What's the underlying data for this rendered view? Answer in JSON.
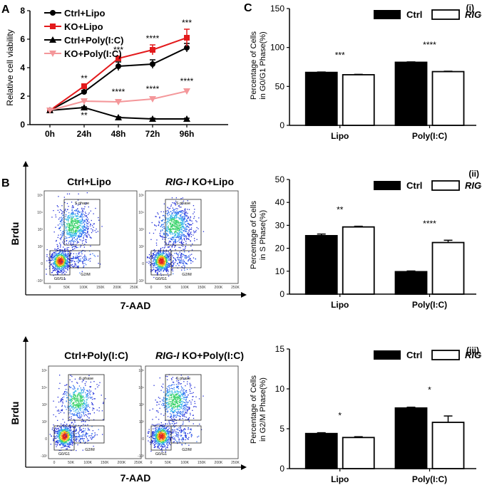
{
  "panel_labels": {
    "A": "A",
    "B": "B",
    "C": "C"
  },
  "colors": {
    "ctrl_lipo": "#000000",
    "ko_lipo": "#e31a1c",
    "ctrl_poly": "#000000",
    "ko_poly": "#f4979a",
    "ctrl_bar": "#000000",
    "ko_bar": "#ffffff"
  },
  "chart_data": [
    {
      "id": "A",
      "type": "line",
      "title": "",
      "xlabel": "",
      "ylabel": "Relative cell viability",
      "categories": [
        "0h",
        "24h",
        "48h",
        "72h",
        "96h"
      ],
      "ylim": [
        0,
        8
      ],
      "yticks": [
        "0",
        "2",
        "4",
        "6",
        "8"
      ],
      "series": [
        {
          "name": "Ctrl+Lipo",
          "values": [
            1.0,
            2.3,
            4.1,
            4.25,
            5.4
          ],
          "errors": [
            0.05,
            0.1,
            0.3,
            0.3,
            0.3
          ],
          "marker": "circle",
          "color": "#000000"
        },
        {
          "name": "KO+Lipo",
          "values": [
            1.0,
            2.7,
            4.65,
            5.25,
            6.1
          ],
          "errors": [
            0.05,
            0.1,
            0.15,
            0.35,
            0.6
          ],
          "marker": "square",
          "color": "#e31a1c"
        },
        {
          "name": "Ctrl+Poly(I:C)",
          "values": [
            1.0,
            1.2,
            0.5,
            0.4,
            0.4
          ],
          "errors": [
            0.05,
            0.05,
            0.05,
            0.05,
            0.05
          ],
          "marker": "triangle",
          "color": "#000000"
        },
        {
          "name": "KO+Poly(I:C)",
          "values": [
            1.0,
            1.65,
            1.6,
            1.8,
            2.35
          ],
          "errors": [
            0.05,
            0.1,
            0.1,
            0.15,
            0.15
          ],
          "marker": "triangle-down",
          "color": "#f4979a"
        }
      ],
      "annotations_upper": [
        "",
        "**",
        "***",
        "****",
        "***"
      ],
      "annotations_middle": [
        "",
        "",
        "****",
        "****",
        "****"
      ],
      "annotations_lower": [
        "",
        "**",
        "",
        "",
        ""
      ]
    },
    {
      "id": "C-i",
      "type": "bar",
      "panel_tag": "(i)",
      "ylabel_line1": "Percentage of Cells",
      "ylabel_line2": "in G0/G1 Phase(%)",
      "categories": [
        "Lipo",
        "Poly(I:C)"
      ],
      "ylim": [
        0,
        150
      ],
      "yticks": [
        "0",
        "50",
        "100",
        "150"
      ],
      "series": [
        {
          "name": "Ctrl",
          "values": [
            68,
            81
          ],
          "errors": [
            0.5,
            0.5
          ]
        },
        {
          "name": "RIG-I KO",
          "values": [
            65,
            69
          ],
          "errors": [
            0.5,
            0.5
          ]
        }
      ],
      "significance": [
        "***",
        "****"
      ]
    },
    {
      "id": "C-ii",
      "type": "bar",
      "panel_tag": "(ii)",
      "ylabel_line1": "Percentage of Cells",
      "ylabel_line2": "in S Phase(%)",
      "categories": [
        "Lipo",
        "Poly(I:C)"
      ],
      "ylim": [
        0,
        50
      ],
      "yticks": [
        "0",
        "10",
        "20",
        "30",
        "40",
        "50"
      ],
      "series": [
        {
          "name": "Ctrl",
          "values": [
            25.5,
            9.8
          ],
          "errors": [
            0.7,
            0.3
          ]
        },
        {
          "name": "RIG-I KO",
          "values": [
            29.3,
            22.5
          ],
          "errors": [
            0.3,
            1.0
          ]
        }
      ],
      "significance": [
        "**",
        "****"
      ]
    },
    {
      "id": "C-iii",
      "type": "bar",
      "panel_tag": "(iii)",
      "ylabel_line1": "Percentage of Cells",
      "ylabel_line2": "in G2/M Phase(%)",
      "categories": [
        "Lipo",
        "Poly(I:C)"
      ],
      "ylim": [
        0,
        15
      ],
      "yticks": [
        "0",
        "5",
        "10",
        "15"
      ],
      "series": [
        {
          "name": "Ctrl",
          "values": [
            4.4,
            7.6
          ],
          "errors": [
            0.1,
            0.1
          ]
        },
        {
          "name": "RIG-I KO",
          "values": [
            3.9,
            5.8
          ],
          "errors": [
            0.1,
            0.8
          ]
        }
      ],
      "significance": [
        "*",
        "*"
      ]
    }
  ],
  "legend_bar": {
    "ctrl": "Ctrl",
    "ko_italic": "RIG-I",
    "ko_rest": " KO"
  },
  "flow": {
    "yaxis_label": "Brdu",
    "xaxis_label": "7-AAD",
    "top_left_title": "Ctrl+Lipo",
    "top_right_title_italic": "RIG-I",
    "top_right_title_rest": " KO+Lipo",
    "bottom_left_title": "Ctrl+Poly(I:C)",
    "bottom_right_title_italic": "RIG-I",
    "bottom_right_title_rest": " KO+Poly(I:C)",
    "gate_s": "S phase",
    "gate_g0g1": "G0/G1",
    "gate_g2m": "G2/M",
    "xticks": [
      "0",
      "50K",
      "100K",
      "150K",
      "200K",
      "250K"
    ],
    "yticks": [
      "10⁵",
      "10⁴",
      "10³",
      "10²",
      "0",
      "-10²"
    ]
  }
}
